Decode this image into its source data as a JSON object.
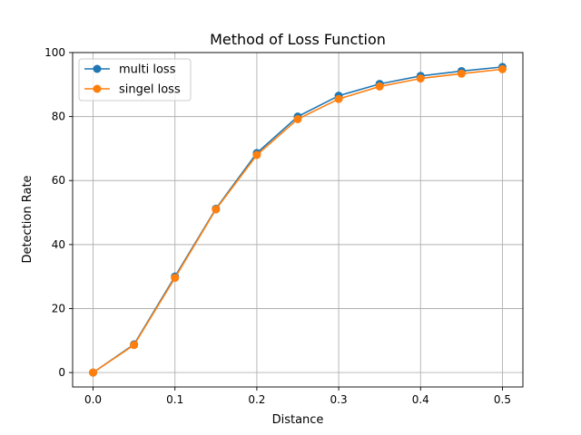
{
  "chart_data": {
    "type": "line",
    "title": "Method of Loss Function",
    "xlabel": "Distance",
    "ylabel": "Detection Rate",
    "xlim": [
      -0.025,
      0.525
    ],
    "ylim": [
      -4.5,
      100
    ],
    "xticks": [
      "0.0",
      "0.1",
      "0.2",
      "0.3",
      "0.4",
      "0.5"
    ],
    "yticks": [
      "0",
      "20",
      "40",
      "60",
      "80",
      "100"
    ],
    "grid": true,
    "legend": "top-left",
    "x": [
      0.0,
      0.05,
      0.1,
      0.15,
      0.2,
      0.25,
      0.3,
      0.35,
      0.4,
      0.45,
      0.5
    ],
    "series": [
      {
        "name": "multi loss",
        "color": "#1f77b4",
        "marker": "circle",
        "values": [
          0.0,
          8.8,
          30.0,
          51.2,
          68.6,
          80.0,
          86.5,
          90.2,
          92.7,
          94.2,
          95.5
        ]
      },
      {
        "name": "singel loss",
        "color": "#ff7f0e",
        "marker": "circle",
        "values": [
          0.0,
          8.6,
          29.6,
          51.0,
          68.0,
          79.2,
          85.5,
          89.4,
          91.9,
          93.4,
          94.8
        ]
      }
    ]
  }
}
